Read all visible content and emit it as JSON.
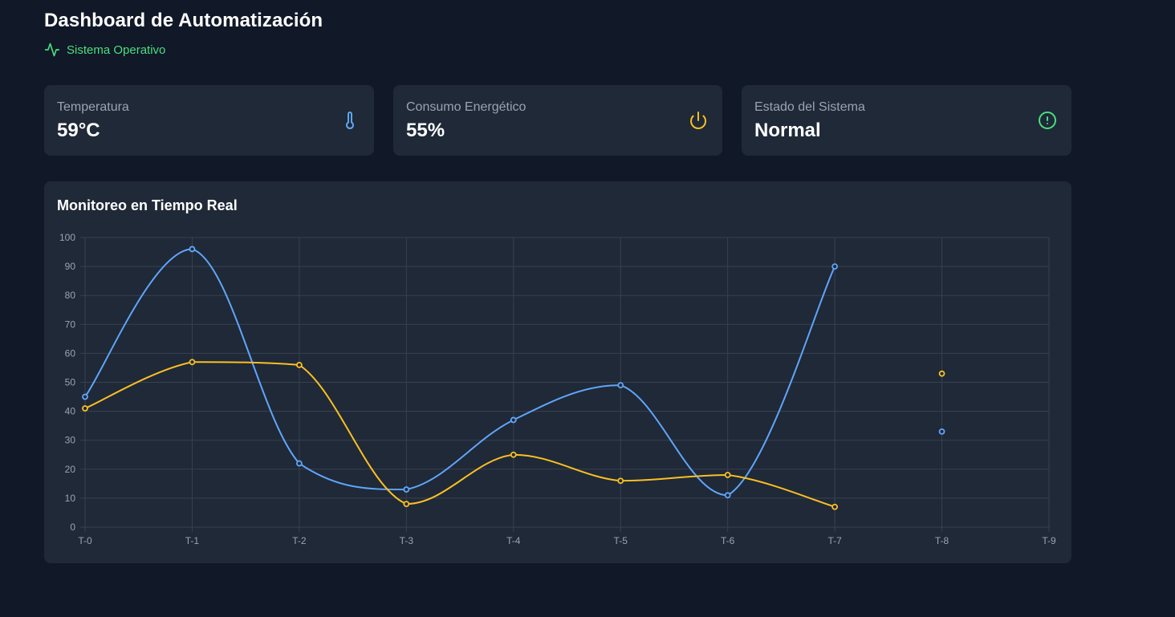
{
  "header": {
    "title": "Dashboard de Automatización",
    "status_text": "Sistema Operativo",
    "status_icon": "activity-icon",
    "status_color": "#4ade80"
  },
  "cards": [
    {
      "label": "Temperatura",
      "value": "59°C",
      "icon": "thermometer-icon",
      "icon_color": "#60a5fa"
    },
    {
      "label": "Consumo Energético",
      "value": "55%",
      "icon": "power-icon",
      "icon_color": "#fbbf24"
    },
    {
      "label": "Estado del Sistema",
      "value": "Normal",
      "icon": "alert-circle-icon",
      "icon_color": "#4ade80"
    }
  ],
  "chart": {
    "title": "Monitoreo en Tiempo Real"
  },
  "chart_data": {
    "type": "line",
    "title": "Monitoreo en Tiempo Real",
    "xlabel": "",
    "ylabel": "",
    "categories": [
      "T-0",
      "T-1",
      "T-2",
      "T-3",
      "T-4",
      "T-5",
      "T-6",
      "T-7",
      "T-8",
      "T-9"
    ],
    "ylim": [
      0,
      100
    ],
    "yticks": [
      0,
      10,
      20,
      30,
      40,
      50,
      60,
      70,
      80,
      90,
      100
    ],
    "grid": true,
    "series": [
      {
        "name": "Temperatura",
        "color": "#60a5fa",
        "values": [
          45,
          96,
          22,
          13,
          37,
          49,
          11,
          90,
          33,
          null
        ]
      },
      {
        "name": "Consumo Energético",
        "color": "#fbbf24",
        "values": [
          41,
          57,
          56,
          8,
          25,
          16,
          18,
          7,
          53,
          null
        ]
      }
    ]
  }
}
